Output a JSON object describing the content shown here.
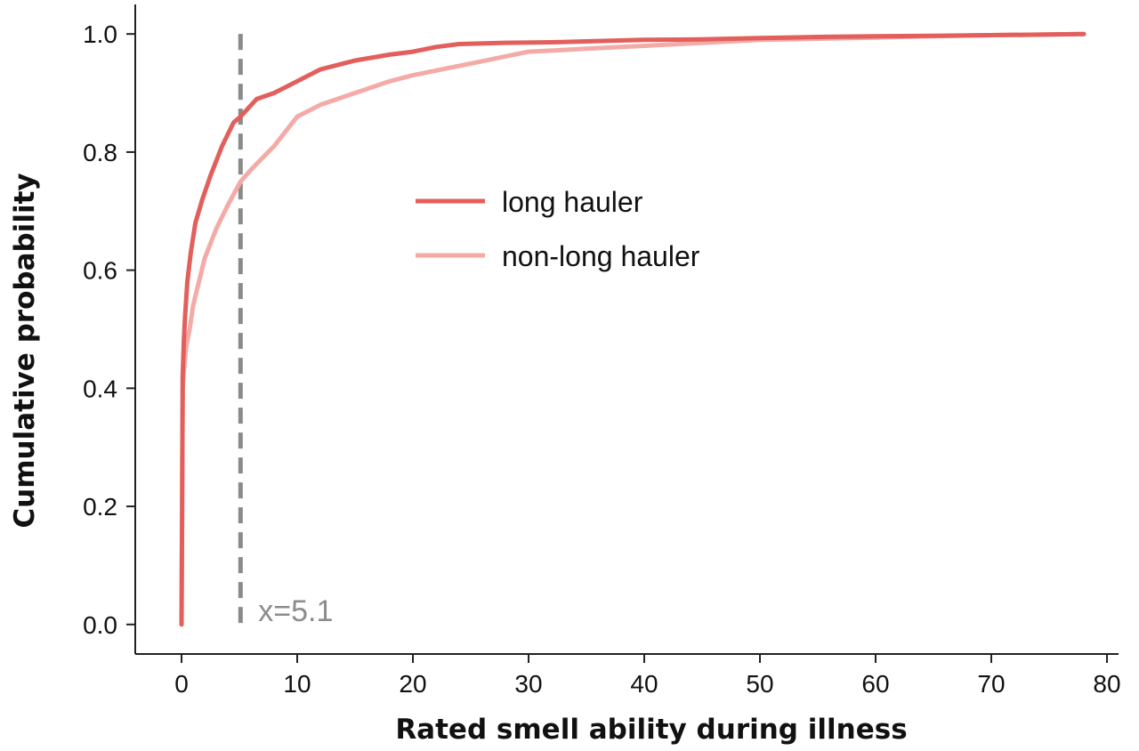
{
  "chart_data": {
    "type": "line",
    "title": "",
    "xlabel": "Rated smell ability during illness",
    "ylabel": "Cumulative probability",
    "xlim": [
      -4,
      81
    ],
    "ylim": [
      -0.05,
      1.05
    ],
    "x_ticks": [
      0,
      10,
      20,
      30,
      40,
      50,
      60,
      70,
      80
    ],
    "y_ticks": [
      0.0,
      0.2,
      0.4,
      0.6,
      0.8,
      1.0
    ],
    "x_tick_labels": [
      "0",
      "10",
      "20",
      "30",
      "40",
      "50",
      "60",
      "70",
      "80"
    ],
    "y_tick_labels": [
      "0.0",
      "0.2",
      "0.4",
      "0.6",
      "0.8",
      "1.0"
    ],
    "grid": false,
    "legend_position": "center-right",
    "series": [
      {
        "name": "long hauler",
        "color": "#e25f5c",
        "x": [
          0,
          0.05,
          0.1,
          0.2,
          0.3,
          0.5,
          0.8,
          1.2,
          1.8,
          2.5,
          3.5,
          4.5,
          5.1,
          6.5,
          8,
          10,
          12,
          15,
          18,
          20,
          22,
          24,
          28,
          32,
          36,
          40,
          45,
          50,
          55,
          60,
          65,
          70,
          75,
          78
        ],
        "y": [
          0,
          0.2,
          0.42,
          0.48,
          0.52,
          0.58,
          0.63,
          0.68,
          0.72,
          0.76,
          0.81,
          0.85,
          0.86,
          0.89,
          0.9,
          0.92,
          0.94,
          0.955,
          0.965,
          0.97,
          0.978,
          0.983,
          0.985,
          0.986,
          0.988,
          0.99,
          0.991,
          0.993,
          0.995,
          0.996,
          0.997,
          0.998,
          0.999,
          1.0
        ]
      },
      {
        "name": "non-long hauler",
        "color": "#f4aaa7",
        "x": [
          0,
          0.05,
          0.1,
          0.2,
          0.4,
          0.7,
          1,
          1.5,
          2,
          3,
          4,
          5.1,
          6,
          8,
          10,
          12,
          15,
          18,
          20,
          25,
          30,
          35,
          40,
          45,
          50,
          55,
          60,
          65,
          70,
          75,
          78
        ],
        "y": [
          0,
          0.25,
          0.4,
          0.43,
          0.47,
          0.5,
          0.54,
          0.58,
          0.62,
          0.67,
          0.71,
          0.75,
          0.77,
          0.81,
          0.86,
          0.88,
          0.9,
          0.92,
          0.93,
          0.95,
          0.97,
          0.975,
          0.98,
          0.985,
          0.99,
          0.992,
          0.994,
          0.996,
          0.998,
          0.999,
          1.0
        ]
      }
    ],
    "annotations": [
      {
        "type": "vline",
        "x": 5.1,
        "label": "x=5.1",
        "color": "#8a8a8a"
      }
    ]
  }
}
